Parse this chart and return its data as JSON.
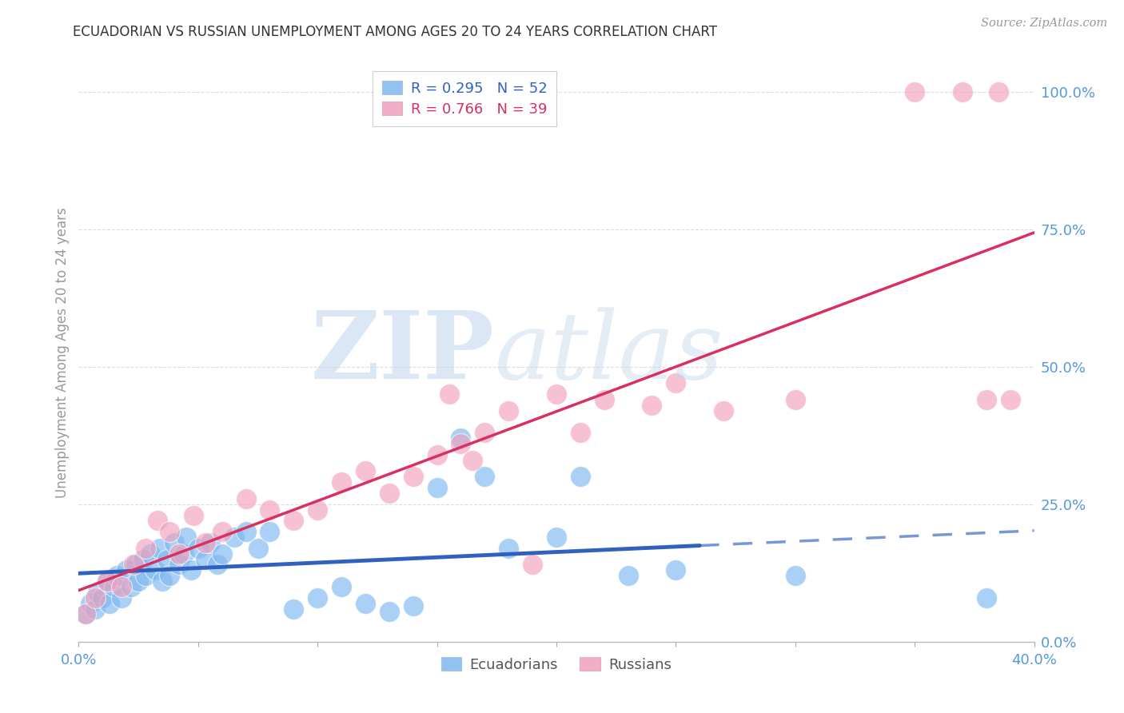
{
  "title": "ECUADORIAN VS RUSSIAN UNEMPLOYMENT AMONG AGES 20 TO 24 YEARS CORRELATION CHART",
  "source": "Source: ZipAtlas.com",
  "ylabel": "Unemployment Among Ages 20 to 24 years",
  "x_tick_values": [
    0.0,
    5.0,
    10.0,
    15.0,
    20.0,
    25.0,
    30.0,
    35.0,
    40.0
  ],
  "x_tick_labels_show": {
    "0.0": "0.0%",
    "40.0": "40.0%"
  },
  "y_tick_values": [
    0.0,
    25.0,
    50.0,
    75.0,
    100.0
  ],
  "y_tick_labels": [
    "0.0%",
    "25.0%",
    "50.0%",
    "75.0%",
    "100.0%"
  ],
  "xlim": [
    0.0,
    40.0
  ],
  "ylim": [
    0.0,
    105.0
  ],
  "legend_r1": "R = 0.295",
  "legend_n1": "N = 52",
  "legend_r2": "R = 0.766",
  "legend_n2": "N = 39",
  "legend_ecuadorians": "Ecuadorians",
  "legend_russians": "Russians",
  "blue_scatter": "#7EB8F0",
  "pink_scatter": "#F0A0BC",
  "blue_line": "#3060C0",
  "pink_line": "#D83060",
  "bg_color": "#FFFFFF",
  "grid_color": "#DDDDDD",
  "title_color": "#333333",
  "tick_color": "#5599DD",
  "ylabel_color": "#999999",
  "source_color": "#999999",
  "watermark_zip": "#C5D8F0",
  "watermark_atlas": "#C5D8EC",
  "solid_dash_split": 26.0,
  "ecuadorians_x": [
    0.3,
    0.5,
    0.7,
    0.8,
    1.0,
    1.2,
    1.3,
    1.5,
    1.6,
    1.8,
    2.0,
    2.2,
    2.4,
    2.5,
    2.7,
    2.8,
    3.0,
    3.2,
    3.4,
    3.5,
    3.7,
    3.8,
    4.0,
    4.2,
    4.4,
    4.5,
    4.7,
    5.0,
    5.3,
    5.5,
    5.8,
    6.0,
    6.5,
    7.0,
    7.5,
    8.0,
    9.0,
    10.0,
    11.0,
    12.0,
    13.0,
    14.0,
    15.0,
    16.0,
    17.0,
    18.0,
    20.0,
    21.0,
    23.0,
    25.0,
    30.0,
    38.0
  ],
  "ecuadorians_y": [
    5.0,
    7.0,
    6.0,
    9.0,
    8.0,
    11.0,
    7.0,
    10.0,
    12.0,
    8.0,
    13.0,
    10.0,
    14.0,
    11.0,
    15.0,
    12.0,
    16.0,
    13.0,
    17.0,
    11.0,
    15.0,
    12.0,
    18.0,
    14.0,
    16.0,
    19.0,
    13.0,
    17.0,
    15.0,
    18.0,
    14.0,
    16.0,
    19.0,
    20.0,
    17.0,
    20.0,
    6.0,
    8.0,
    10.0,
    7.0,
    5.5,
    6.5,
    28.0,
    37.0,
    30.0,
    17.0,
    19.0,
    30.0,
    12.0,
    13.0,
    12.0,
    8.0
  ],
  "russians_x": [
    0.3,
    0.7,
    1.2,
    1.8,
    2.3,
    2.8,
    3.3,
    3.8,
    4.2,
    4.8,
    5.3,
    6.0,
    7.0,
    8.0,
    9.0,
    10.0,
    11.0,
    12.0,
    13.0,
    14.0,
    15.0,
    16.0,
    17.0,
    18.0,
    20.0,
    21.0,
    22.0,
    24.0,
    25.0,
    27.0,
    30.0,
    35.0,
    37.0,
    38.0,
    38.5,
    39.0,
    15.5,
    16.5,
    19.0
  ],
  "russians_y": [
    5.0,
    8.0,
    11.0,
    10.0,
    14.0,
    17.0,
    22.0,
    20.0,
    16.0,
    23.0,
    18.0,
    20.0,
    26.0,
    24.0,
    22.0,
    24.0,
    29.0,
    31.0,
    27.0,
    30.0,
    34.0,
    36.0,
    38.0,
    42.0,
    45.0,
    38.0,
    44.0,
    43.0,
    47.0,
    42.0,
    44.0,
    100.0,
    100.0,
    44.0,
    100.0,
    44.0,
    45.0,
    33.0,
    14.0
  ]
}
